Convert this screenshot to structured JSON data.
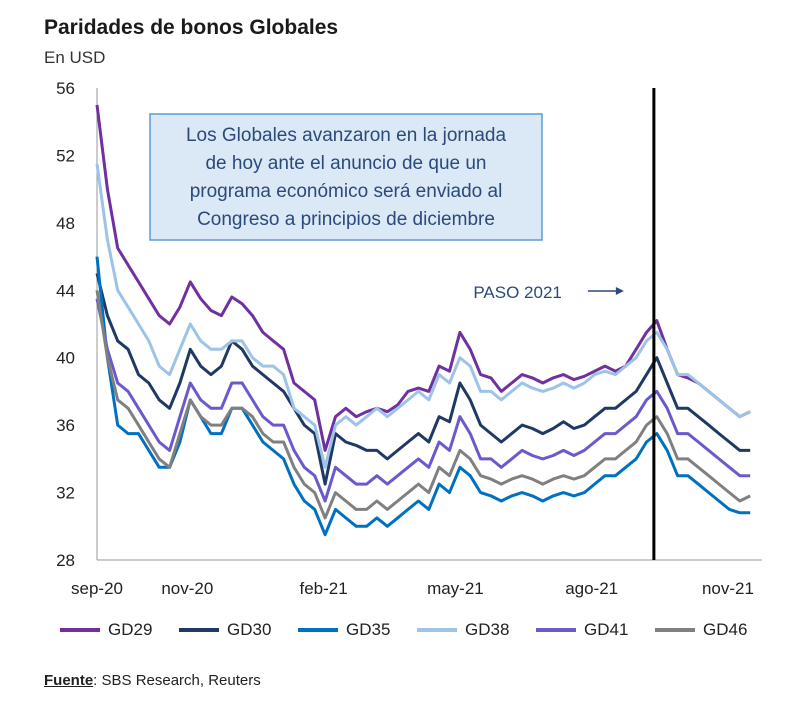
{
  "header": {
    "title": "Paridades de bonos Globales",
    "subtitle": "En USD"
  },
  "annotation": {
    "box_text": [
      "Los Globales avanzaron en la jornada",
      "de hoy ante el anuncio de que un",
      "programa económico será enviado al",
      "Congreso a principios de diciembre"
    ],
    "paso_label": "PASO 2021",
    "colors": {
      "box_fill": "#dbe8f5",
      "box_border": "#5b9bd5",
      "text": "#2b4a7a"
    }
  },
  "source": {
    "label": "Fuente",
    "text": ": SBS Research, Reuters"
  },
  "chart_data": {
    "type": "line",
    "title": "Paridades de bonos Globales",
    "ylabel": "En USD",
    "ylim": [
      28,
      56
    ],
    "yticks": [
      "28",
      "32",
      "36",
      "40",
      "44",
      "48",
      "52",
      "56"
    ],
    "xticks": [
      {
        "label": "sep-20",
        "date": "2020-09-01"
      },
      {
        "label": "nov-20",
        "date": "2020-11-01"
      },
      {
        "label": "feb-21",
        "date": "2021-02-01"
      },
      {
        "label": "may-21",
        "date": "2021-05-01"
      },
      {
        "label": "ago-21",
        "date": "2021-08-01"
      },
      {
        "label": "nov-21",
        "date": "2021-11-01"
      }
    ],
    "x": [
      "2020-09-01",
      "2020-09-08",
      "2020-09-15",
      "2020-09-22",
      "2020-09-29",
      "2020-10-06",
      "2020-10-13",
      "2020-10-20",
      "2020-10-27",
      "2020-11-03",
      "2020-11-10",
      "2020-11-17",
      "2020-11-24",
      "2020-12-01",
      "2020-12-08",
      "2020-12-15",
      "2020-12-22",
      "2020-12-29",
      "2021-01-05",
      "2021-01-12",
      "2021-01-19",
      "2021-01-26",
      "2021-02-02",
      "2021-02-09",
      "2021-02-16",
      "2021-02-23",
      "2021-03-02",
      "2021-03-09",
      "2021-03-16",
      "2021-03-23",
      "2021-03-30",
      "2021-04-06",
      "2021-04-13",
      "2021-04-20",
      "2021-04-27",
      "2021-05-04",
      "2021-05-11",
      "2021-05-18",
      "2021-05-25",
      "2021-06-01",
      "2021-06-08",
      "2021-06-15",
      "2021-06-22",
      "2021-06-29",
      "2021-07-06",
      "2021-07-13",
      "2021-07-20",
      "2021-07-27",
      "2021-08-03",
      "2021-08-10",
      "2021-08-17",
      "2021-08-24",
      "2021-08-31",
      "2021-09-07",
      "2021-09-14",
      "2021-09-21",
      "2021-09-28",
      "2021-10-05",
      "2021-10-12",
      "2021-10-19",
      "2021-10-26",
      "2021-11-02",
      "2021-11-09",
      "2021-11-16"
    ],
    "series": [
      {
        "name": "GD29",
        "color": "#7030a0",
        "values": [
          55.0,
          50.0,
          46.5,
          45.5,
          44.5,
          43.5,
          42.5,
          42.0,
          43.0,
          44.5,
          43.5,
          42.8,
          42.5,
          43.6,
          43.2,
          42.5,
          41.5,
          41.0,
          40.5,
          38.5,
          38.0,
          37.5,
          34.5,
          36.5,
          37.0,
          36.5,
          36.8,
          37.0,
          36.8,
          37.2,
          38.0,
          38.2,
          38.0,
          39.5,
          39.2,
          41.5,
          40.5,
          39.0,
          38.8,
          38.0,
          38.5,
          39.0,
          38.8,
          38.5,
          38.8,
          39.0,
          38.7,
          38.9,
          39.2,
          39.5,
          39.2,
          39.5,
          40.5,
          41.5,
          42.2,
          40.5,
          39.0,
          38.8,
          38.5,
          38.0,
          37.5,
          37.0,
          36.5,
          36.8
        ]
      },
      {
        "name": "GD30",
        "color": "#1f3864",
        "values": [
          45.0,
          42.5,
          41.0,
          40.5,
          39.0,
          38.5,
          37.5,
          37.0,
          38.5,
          40.5,
          39.5,
          39.0,
          39.5,
          41.0,
          40.5,
          39.5,
          39.0,
          38.5,
          38.0,
          37.0,
          36.0,
          35.5,
          32.5,
          35.5,
          35.0,
          34.8,
          34.5,
          34.5,
          34.0,
          34.5,
          35.0,
          35.5,
          35.0,
          36.5,
          36.2,
          38.5,
          37.5,
          36.0,
          35.5,
          35.0,
          35.5,
          36.0,
          35.8,
          35.5,
          35.8,
          36.2,
          35.8,
          36.0,
          36.5,
          37.0,
          37.0,
          37.5,
          38.0,
          39.0,
          40.0,
          38.5,
          37.0,
          37.0,
          36.5,
          36.0,
          35.5,
          35.0,
          34.5,
          34.5
        ]
      },
      {
        "name": "GD35",
        "color": "#0070c0",
        "values": [
          46.0,
          40.0,
          36.0,
          35.5,
          35.5,
          34.5,
          33.5,
          33.5,
          35.0,
          37.5,
          36.5,
          35.5,
          35.5,
          37.0,
          37.0,
          36.0,
          35.0,
          34.5,
          34.0,
          32.5,
          31.5,
          31.0,
          29.5,
          31.0,
          30.5,
          30.0,
          30.0,
          30.5,
          30.0,
          30.5,
          31.0,
          31.5,
          31.0,
          32.5,
          32.0,
          33.5,
          33.0,
          32.0,
          31.8,
          31.5,
          31.8,
          32.0,
          31.8,
          31.5,
          31.8,
          32.0,
          31.8,
          32.0,
          32.5,
          33.0,
          33.0,
          33.5,
          34.0,
          35.0,
          35.5,
          34.5,
          33.0,
          33.0,
          32.5,
          32.0,
          31.5,
          31.0,
          30.8,
          30.8
        ]
      },
      {
        "name": "GD38",
        "color": "#9dc3e6",
        "values": [
          51.5,
          47.0,
          44.0,
          43.0,
          42.0,
          41.0,
          39.5,
          39.0,
          40.5,
          42.0,
          41.0,
          40.5,
          40.5,
          41.0,
          41.0,
          40.0,
          39.5,
          39.5,
          39.0,
          37.0,
          36.5,
          36.0,
          33.5,
          36.0,
          36.5,
          36.0,
          36.5,
          37.0,
          36.5,
          37.0,
          37.5,
          38.0,
          37.5,
          39.0,
          38.5,
          40.0,
          39.5,
          38.0,
          38.0,
          37.5,
          38.0,
          38.5,
          38.2,
          38.0,
          38.2,
          38.5,
          38.2,
          38.5,
          39.0,
          39.2,
          39.0,
          39.5,
          40.0,
          41.0,
          41.5,
          40.5,
          39.0,
          39.0,
          38.5,
          38.0,
          37.5,
          37.0,
          36.5,
          36.8
        ]
      },
      {
        "name": "GD41",
        "color": "#6a5acd",
        "values": [
          43.5,
          40.5,
          38.5,
          38.0,
          37.0,
          36.0,
          35.0,
          34.5,
          36.5,
          38.5,
          37.5,
          37.0,
          37.0,
          38.5,
          38.5,
          37.5,
          36.5,
          36.0,
          36.0,
          34.5,
          33.5,
          33.0,
          31.5,
          33.5,
          33.0,
          32.5,
          32.5,
          33.0,
          32.5,
          33.0,
          33.5,
          34.0,
          33.5,
          35.0,
          34.5,
          36.5,
          35.5,
          34.0,
          34.0,
          33.5,
          34.0,
          34.5,
          34.2,
          34.0,
          34.2,
          34.5,
          34.2,
          34.5,
          35.0,
          35.5,
          35.5,
          36.0,
          36.5,
          37.5,
          38.0,
          37.0,
          35.5,
          35.5,
          35.0,
          34.5,
          34.0,
          33.5,
          33.0,
          33.0
        ]
      },
      {
        "name": "GD46",
        "color": "#808080",
        "values": [
          44.0,
          40.0,
          37.5,
          37.0,
          36.0,
          35.0,
          34.0,
          33.5,
          35.5,
          37.5,
          36.5,
          36.0,
          36.0,
          37.0,
          37.0,
          36.5,
          35.5,
          35.0,
          35.0,
          33.5,
          32.5,
          32.0,
          30.5,
          32.0,
          31.5,
          31.0,
          31.0,
          31.5,
          31.0,
          31.5,
          32.0,
          32.5,
          32.0,
          33.5,
          33.0,
          34.5,
          34.0,
          33.0,
          32.8,
          32.5,
          32.8,
          33.0,
          32.8,
          32.5,
          32.8,
          33.0,
          32.8,
          33.0,
          33.5,
          34.0,
          34.0,
          34.5,
          35.0,
          36.0,
          36.5,
          35.5,
          34.0,
          34.0,
          33.5,
          33.0,
          32.5,
          32.0,
          31.5,
          31.8
        ]
      }
    ],
    "vertical_marker": {
      "date": "2021-09-12",
      "label": "PASO 2021"
    },
    "grid": false,
    "legend_position": "bottom"
  }
}
